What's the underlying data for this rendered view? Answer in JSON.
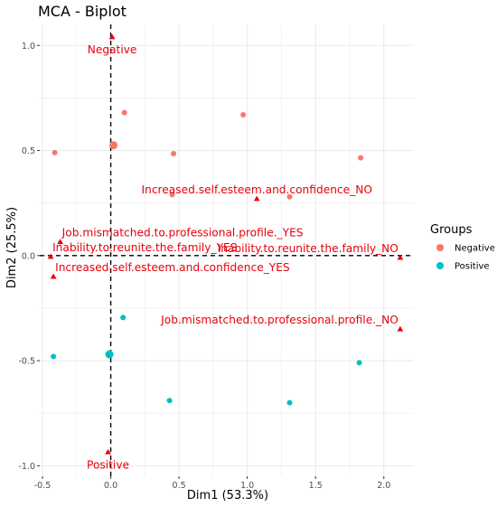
{
  "chart_data": {
    "type": "scatter",
    "title": "MCA - Biplot",
    "xlabel": "Dim1 (53.3%)",
    "ylabel": "Dim2 (25.5%)",
    "xlim": [
      -0.52,
      2.22
    ],
    "ylim": [
      -1.05,
      1.1
    ],
    "xticks": [
      -0.5,
      0.0,
      0.5,
      1.0,
      1.5,
      2.0
    ],
    "xtick_labels": [
      "-0.5",
      "0.0",
      "0.5",
      "1.0",
      "1.5",
      "2.0"
    ],
    "yticks": [
      -1.0,
      -0.5,
      0.0,
      0.5,
      1.0
    ],
    "ytick_labels": [
      "-1.0",
      "-0.5",
      "0.0",
      "0.5",
      "1.0"
    ],
    "grid": true,
    "reference_lines": {
      "x": 0,
      "y": 0,
      "style": "dashed"
    },
    "legend": {
      "title": "Groups",
      "position": "right",
      "entries": [
        {
          "name": "Negative",
          "color": "#F8766D"
        },
        {
          "name": "Positive",
          "color": "#00BFC4"
        }
      ]
    },
    "series": [
      {
        "name": "Negative",
        "color": "#F8766D",
        "points": [
          {
            "x": -0.41,
            "y": 0.49
          },
          {
            "x": 0.1,
            "y": 0.68
          },
          {
            "x": 0.46,
            "y": 0.485
          },
          {
            "x": 0.97,
            "y": 0.67
          },
          {
            "x": 1.83,
            "y": 0.465
          },
          {
            "x": 0.45,
            "y": 0.29
          },
          {
            "x": 1.31,
            "y": 0.28
          }
        ],
        "centroid": {
          "x": 0.02,
          "y": 0.525
        }
      },
      {
        "name": "Positive",
        "color": "#00BFC4",
        "points": [
          {
            "x": -0.42,
            "y": -0.48
          },
          {
            "x": 0.09,
            "y": -0.295
          },
          {
            "x": 0.43,
            "y": -0.69
          },
          {
            "x": 1.31,
            "y": -0.7
          },
          {
            "x": 1.82,
            "y": -0.51
          }
        ],
        "centroid": {
          "x": -0.01,
          "y": -0.47
        }
      }
    ],
    "variable_points": [
      {
        "label": "Negative",
        "x": 0.01,
        "y": 1.04,
        "label_anchor": "middle",
        "label_below": true
      },
      {
        "label": "Increased.self.esteem.and.confidence_NO",
        "x": 1.07,
        "y": 0.27,
        "label_anchor": "middle"
      },
      {
        "label": "Job.mismatched.to.professional.profile._YES",
        "x": -0.37,
        "y": 0.065,
        "label_anchor": "start"
      },
      {
        "label": "Inability.to.reunite.the.family_YES",
        "x": -0.44,
        "y": -0.005,
        "label_anchor": "start"
      },
      {
        "label": "Inability.to.reunite.the.family_NO",
        "x": 2.12,
        "y": -0.01,
        "label_anchor": "end"
      },
      {
        "label": "Increased.self.esteem.and.confidence_YES",
        "x": -0.42,
        "y": -0.1,
        "label_anchor": "start"
      },
      {
        "label": "Job.mismatched.to.professional.profile._NO",
        "x": 2.12,
        "y": -0.35,
        "label_anchor": "end"
      },
      {
        "label": "Positive",
        "x": -0.02,
        "y": -0.935,
        "label_anchor": "middle",
        "label_below": true
      }
    ],
    "variable_color": "#E8000B",
    "panel_background": "#FFFFFF",
    "grid_color": "#EBEBEB"
  }
}
